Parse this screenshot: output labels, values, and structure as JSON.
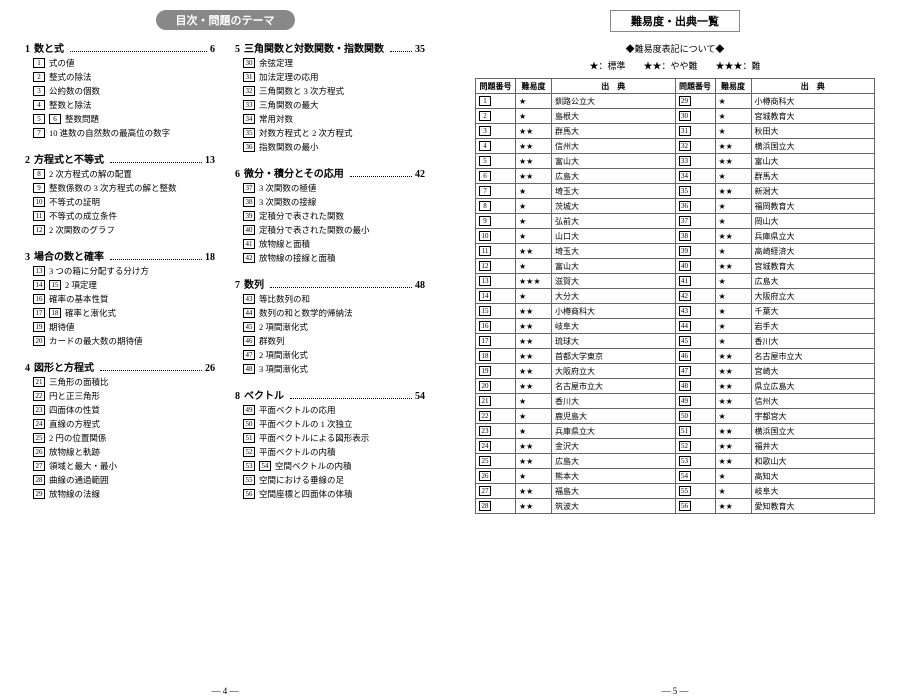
{
  "leftPage": {
    "headerLabel": "目次・問題のテーマ",
    "pageNum": "— 4 —",
    "columns": [
      [
        {
          "type": "chapter",
          "num": "1",
          "title": "数と式",
          "page": "6"
        },
        {
          "type": "item",
          "nums": [
            "1"
          ],
          "text": "式の値"
        },
        {
          "type": "item",
          "nums": [
            "2"
          ],
          "text": "整式の除法"
        },
        {
          "type": "item",
          "nums": [
            "3"
          ],
          "text": "公約数の個数"
        },
        {
          "type": "item",
          "nums": [
            "4"
          ],
          "text": "整数と除法"
        },
        {
          "type": "item",
          "nums": [
            "5",
            "6"
          ],
          "text": "整数問題"
        },
        {
          "type": "item",
          "nums": [
            "7"
          ],
          "text": "10 進数の自然数の最高位の数字"
        },
        {
          "type": "chapter",
          "num": "2",
          "title": "方程式と不等式",
          "page": "13"
        },
        {
          "type": "item",
          "nums": [
            "8"
          ],
          "text": "2 次方程式の解の配置"
        },
        {
          "type": "item",
          "nums": [
            "9"
          ],
          "text": "整数係数の 3 次方程式の解と整数"
        },
        {
          "type": "item",
          "nums": [
            "10"
          ],
          "text": "不等式の証明"
        },
        {
          "type": "item",
          "nums": [
            "11"
          ],
          "text": "不等式の成立条件"
        },
        {
          "type": "item",
          "nums": [
            "12"
          ],
          "text": "2 次関数のグラフ"
        },
        {
          "type": "chapter",
          "num": "3",
          "title": "場合の数と確率",
          "page": "18"
        },
        {
          "type": "item",
          "nums": [
            "13"
          ],
          "text": "3 つの箱に分配する分け方"
        },
        {
          "type": "item",
          "nums": [
            "14",
            "15"
          ],
          "text": "2 項定理"
        },
        {
          "type": "item",
          "nums": [
            "16"
          ],
          "text": "確率の基本性質"
        },
        {
          "type": "item",
          "nums": [
            "17",
            "18"
          ],
          "text": "確率と漸化式"
        },
        {
          "type": "item",
          "nums": [
            "19"
          ],
          "text": "期待値"
        },
        {
          "type": "item",
          "nums": [
            "20"
          ],
          "text": "カードの最大数の期待値"
        },
        {
          "type": "chapter",
          "num": "4",
          "title": "図形と方程式",
          "page": "26"
        },
        {
          "type": "item",
          "nums": [
            "21"
          ],
          "text": "三角形の面積比"
        },
        {
          "type": "item",
          "nums": [
            "22"
          ],
          "text": "円と正三角形"
        },
        {
          "type": "item",
          "nums": [
            "23"
          ],
          "text": "四面体の性質"
        },
        {
          "type": "item",
          "nums": [
            "24"
          ],
          "text": "直線の方程式"
        },
        {
          "type": "item",
          "nums": [
            "25"
          ],
          "text": "2 円の位置関係"
        },
        {
          "type": "item",
          "nums": [
            "26"
          ],
          "text": "放物線と軌跡"
        },
        {
          "type": "item",
          "nums": [
            "27"
          ],
          "text": "領域と最大・最小"
        },
        {
          "type": "item",
          "nums": [
            "28"
          ],
          "text": "曲線の通過範囲"
        },
        {
          "type": "item",
          "nums": [
            "29"
          ],
          "text": "放物線の法線"
        }
      ],
      [
        {
          "type": "chapter",
          "num": "5",
          "title": "三角関数と対数関数・指数関数",
          "page": "35"
        },
        {
          "type": "item",
          "nums": [
            "30"
          ],
          "text": "余弦定理"
        },
        {
          "type": "item",
          "nums": [
            "31"
          ],
          "text": "加法定理の応用"
        },
        {
          "type": "item",
          "nums": [
            "32"
          ],
          "text": "三角関数と 3 次方程式"
        },
        {
          "type": "item",
          "nums": [
            "33"
          ],
          "text": "三角関数の最大"
        },
        {
          "type": "item",
          "nums": [
            "34"
          ],
          "text": "常用対数"
        },
        {
          "type": "item",
          "nums": [
            "35"
          ],
          "text": "対数方程式と 2 次方程式"
        },
        {
          "type": "item",
          "nums": [
            "36"
          ],
          "text": "指数関数の最小"
        },
        {
          "type": "chapter",
          "num": "6",
          "title": "微分・積分とその応用",
          "page": "42"
        },
        {
          "type": "item",
          "nums": [
            "37"
          ],
          "text": "3 次関数の極値"
        },
        {
          "type": "item",
          "nums": [
            "38"
          ],
          "text": "3 次関数の接線"
        },
        {
          "type": "item",
          "nums": [
            "39"
          ],
          "text": "定積分で表された関数"
        },
        {
          "type": "item",
          "nums": [
            "40"
          ],
          "text": "定積分で表された関数の最小"
        },
        {
          "type": "item",
          "nums": [
            "41"
          ],
          "text": "放物線と面積"
        },
        {
          "type": "item",
          "nums": [
            "42"
          ],
          "text": "放物線の接線と面積"
        },
        {
          "type": "chapter",
          "num": "7",
          "title": "数列",
          "page": "48"
        },
        {
          "type": "item",
          "nums": [
            "43"
          ],
          "text": "等比数列の和"
        },
        {
          "type": "item",
          "nums": [
            "44"
          ],
          "text": "数列の和と数学的帰納法"
        },
        {
          "type": "item",
          "nums": [
            "45"
          ],
          "text": "2 項間漸化式"
        },
        {
          "type": "item",
          "nums": [
            "46"
          ],
          "text": "群数列"
        },
        {
          "type": "item",
          "nums": [
            "47"
          ],
          "text": "2 項間漸化式"
        },
        {
          "type": "item",
          "nums": [
            "48"
          ],
          "text": "3 項間漸化式"
        },
        {
          "type": "chapter",
          "num": "8",
          "title": "ベクトル",
          "page": "54"
        },
        {
          "type": "item",
          "nums": [
            "49"
          ],
          "text": "平面ベクトルの応用"
        },
        {
          "type": "item",
          "nums": [
            "50"
          ],
          "text": "平面ベクトルの 1 次独立"
        },
        {
          "type": "item",
          "nums": [
            "51"
          ],
          "text": "平面ベクトルによる図形表示"
        },
        {
          "type": "item",
          "nums": [
            "52"
          ],
          "text": "平面ベクトルの内積"
        },
        {
          "type": "item",
          "nums": [
            "53",
            "54"
          ],
          "text": "空間ベクトルの内積"
        },
        {
          "type": "item",
          "nums": [
            "55"
          ],
          "text": "空間における垂線の足"
        },
        {
          "type": "item",
          "nums": [
            "56"
          ],
          "text": "空間座標と四面体の体積"
        }
      ]
    ]
  },
  "rightPage": {
    "headerLabel": "難易度・出典一覧",
    "subCaption": "◆難易度表記について◆",
    "starLegend": "★：標準　　★★：やや難　　★★★：難",
    "pageNum": "— 5 —",
    "tableHeaders": {
      "num": "問題番号",
      "diff": "難易度",
      "src": "出　典"
    },
    "rows": [
      {
        "n1": "1",
        "d1": "★",
        "s1": "釧路公立大",
        "n2": "29",
        "d2": "★",
        "s2": "小樽商科大"
      },
      {
        "n1": "2",
        "d1": "★",
        "s1": "島根大",
        "n2": "30",
        "d2": "★",
        "s2": "宮城教育大"
      },
      {
        "n1": "3",
        "d1": "★★",
        "s1": "群馬大",
        "n2": "31",
        "d2": "★",
        "s2": "秋田大"
      },
      {
        "n1": "4",
        "d1": "★★",
        "s1": "信州大",
        "n2": "32",
        "d2": "★★",
        "s2": "横浜国立大"
      },
      {
        "n1": "5",
        "d1": "★★",
        "s1": "富山大",
        "n2": "33",
        "d2": "★★",
        "s2": "富山大"
      },
      {
        "n1": "6",
        "d1": "★★",
        "s1": "広島大",
        "n2": "34",
        "d2": "★",
        "s2": "群馬大"
      },
      {
        "n1": "7",
        "d1": "★",
        "s1": "埼玉大",
        "n2": "35",
        "d2": "★★",
        "s2": "新潟大"
      },
      {
        "n1": "8",
        "d1": "★",
        "s1": "茨城大",
        "n2": "36",
        "d2": "★",
        "s2": "福岡教育大"
      },
      {
        "n1": "9",
        "d1": "★",
        "s1": "弘前大",
        "n2": "37",
        "d2": "★",
        "s2": "岡山大"
      },
      {
        "n1": "10",
        "d1": "★",
        "s1": "山口大",
        "n2": "38",
        "d2": "★★",
        "s2": "兵庫県立大"
      },
      {
        "n1": "11",
        "d1": "★★",
        "s1": "埼玉大",
        "n2": "39",
        "d2": "★",
        "s2": "高崎経済大"
      },
      {
        "n1": "12",
        "d1": "★",
        "s1": "富山大",
        "n2": "40",
        "d2": "★★",
        "s2": "宮城教育大"
      },
      {
        "n1": "13",
        "d1": "★★★",
        "s1": "滋賀大",
        "n2": "41",
        "d2": "★",
        "s2": "広島大"
      },
      {
        "n1": "14",
        "d1": "★",
        "s1": "大分大",
        "n2": "42",
        "d2": "★",
        "s2": "大阪府立大"
      },
      {
        "n1": "15",
        "d1": "★★",
        "s1": "小樽商科大",
        "n2": "43",
        "d2": "★",
        "s2": "千葉大"
      },
      {
        "n1": "16",
        "d1": "★★",
        "s1": "岐阜大",
        "n2": "44",
        "d2": "★",
        "s2": "岩手大"
      },
      {
        "n1": "17",
        "d1": "★★",
        "s1": "琉球大",
        "n2": "45",
        "d2": "★",
        "s2": "香川大"
      },
      {
        "n1": "18",
        "d1": "★★",
        "s1": "首都大学東京",
        "n2": "46",
        "d2": "★★",
        "s2": "名古屋市立大"
      },
      {
        "n1": "19",
        "d1": "★★",
        "s1": "大阪府立大",
        "n2": "47",
        "d2": "★★",
        "s2": "宮崎大"
      },
      {
        "n1": "20",
        "d1": "★★",
        "s1": "名古屋市立大",
        "n2": "48",
        "d2": "★★",
        "s2": "県立広島大"
      },
      {
        "n1": "21",
        "d1": "★",
        "s1": "香川大",
        "n2": "49",
        "d2": "★★",
        "s2": "信州大"
      },
      {
        "n1": "22",
        "d1": "★",
        "s1": "鹿児島大",
        "n2": "50",
        "d2": "★",
        "s2": "宇都宮大"
      },
      {
        "n1": "23",
        "d1": "★",
        "s1": "兵庫県立大",
        "n2": "51",
        "d2": "★★",
        "s2": "横浜国立大"
      },
      {
        "n1": "24",
        "d1": "★★",
        "s1": "金沢大",
        "n2": "52",
        "d2": "★★",
        "s2": "福井大"
      },
      {
        "n1": "25",
        "d1": "★★",
        "s1": "広島大",
        "n2": "53",
        "d2": "★★",
        "s2": "和歌山大"
      },
      {
        "n1": "26",
        "d1": "★",
        "s1": "熊本大",
        "n2": "54",
        "d2": "★",
        "s2": "高知大"
      },
      {
        "n1": "27",
        "d1": "★★",
        "s1": "福島大",
        "n2": "55",
        "d2": "★",
        "s2": "岐阜大"
      },
      {
        "n1": "28",
        "d1": "★★",
        "s1": "筑波大",
        "n2": "56",
        "d2": "★★",
        "s2": "愛知教育大"
      }
    ]
  }
}
